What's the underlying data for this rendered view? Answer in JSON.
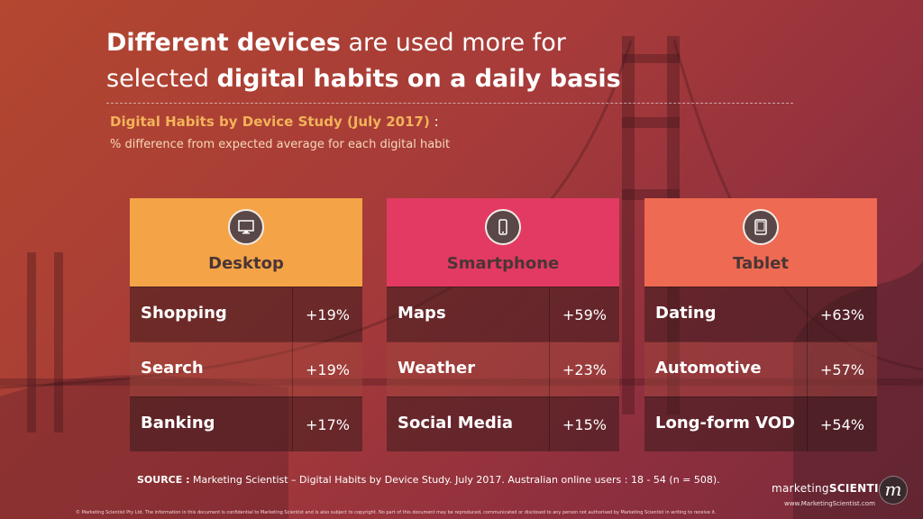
{
  "title": {
    "part1_bold": "Different devices",
    "part2": " are used more for",
    "part3": "selected ",
    "part4_bold": "digital habits on a daily basis"
  },
  "subtitle": {
    "text": "Digital Habits by Device Study (July 2017)",
    "colon": " :"
  },
  "subnote": "% difference from expected average for each digital habit",
  "colors": {
    "desktop": "#f4a347",
    "smartphone": "#e33a63",
    "tablet": "#ef6a52"
  },
  "chart_data": {
    "type": "table",
    "columns": [
      {
        "device": "Desktop",
        "icon": "monitor-icon",
        "rows": [
          {
            "habit": "Shopping",
            "value": "+19%"
          },
          {
            "habit": "Search",
            "value": "+19%"
          },
          {
            "habit": "Banking",
            "value": "+17%"
          }
        ]
      },
      {
        "device": "Smartphone",
        "icon": "smartphone-icon",
        "rows": [
          {
            "habit": "Maps",
            "value": "+59%"
          },
          {
            "habit": "Weather",
            "value": "+23%"
          },
          {
            "habit": "Social Media",
            "value": "+15%"
          }
        ]
      },
      {
        "device": "Tablet",
        "icon": "tablet-icon",
        "rows": [
          {
            "habit": "Dating",
            "value": "+63%"
          },
          {
            "habit": "Automotive",
            "value": "+57%"
          },
          {
            "habit": "Long-form VOD",
            "value": "+54%"
          }
        ]
      }
    ]
  },
  "source": {
    "label": "SOURCE :",
    "text": " Marketing Scientist – Digital Habits by Device Study. July 2017. Australian online users : 18 - 54 (n = 508)."
  },
  "brand": {
    "name_light": "marketing",
    "name_bold": "SCIENTIST",
    "url": "www.MarketingScientist.com",
    "logo_letter": "m"
  },
  "footer": "© Marketing Scientist Pty Ltd. The information in this document is confidential to Marketing Scientist and is also subject to copyright. No part of this document may be reproduced, communicated or disclosed to any person not authorised by Marketing Scientist in writing to receive it."
}
